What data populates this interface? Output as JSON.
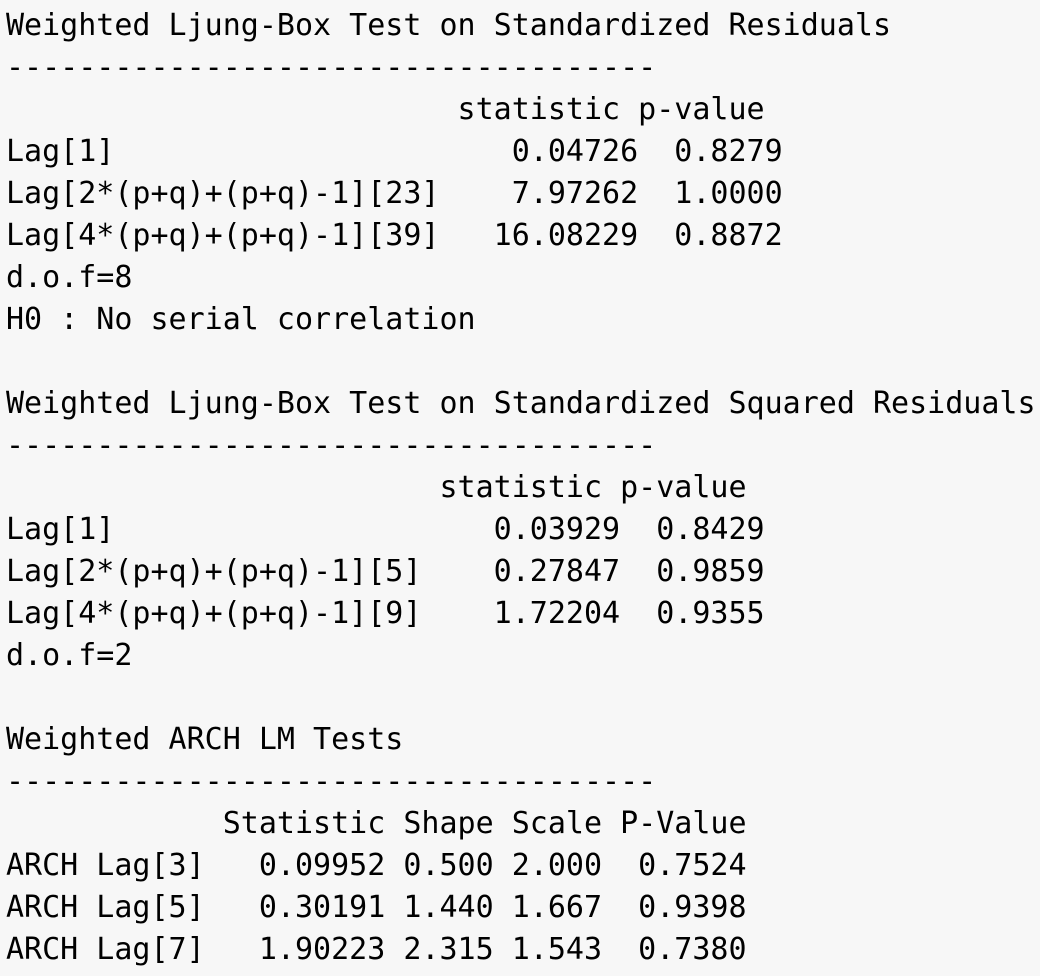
{
  "sections": [
    {
      "title": "Weighted Ljung-Box Test on Standardized Residuals",
      "rule": "------------------------------------",
      "header": "                         statistic p-value",
      "rows": [
        "Lag[1]                      0.04726  0.8279",
        "Lag[2*(p+q)+(p+q)-1][23]    7.97262  1.0000",
        "Lag[4*(p+q)+(p+q)-1][39]   16.08229  0.8872"
      ],
      "footer": [
        "d.o.f=8",
        "H0 : No serial correlation"
      ]
    },
    {
      "title": "Weighted Ljung-Box Test on Standardized Squared Residuals",
      "rule": "------------------------------------",
      "header": "                        statistic p-value",
      "rows": [
        "Lag[1]                     0.03929  0.8429",
        "Lag[2*(p+q)+(p+q)-1][5]    0.27847  0.9859",
        "Lag[4*(p+q)+(p+q)-1][9]    1.72204  0.9355"
      ],
      "footer": [
        "d.o.f=2"
      ]
    },
    {
      "title": "Weighted ARCH LM Tests",
      "rule": "------------------------------------",
      "header": "            Statistic Shape Scale P-Value",
      "rows": [
        "ARCH Lag[3]   0.09952 0.500 2.000  0.7524",
        "ARCH Lag[5]   0.30191 1.440 1.667  0.9398",
        "ARCH Lag[7]   1.90223 2.315 1.543  0.7380"
      ],
      "footer": []
    }
  ]
}
